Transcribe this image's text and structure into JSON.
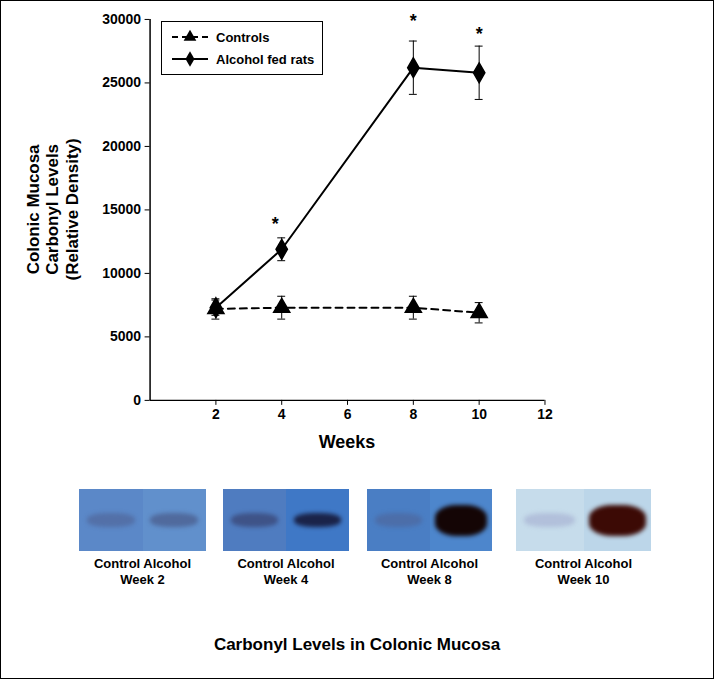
{
  "chart_data": {
    "type": "line",
    "x_label": "Weeks",
    "y_label": "Colonic Mucosa\nCarbonyl Levels\n(Relative Density)",
    "x": [
      2,
      4,
      8,
      10
    ],
    "series": [
      {
        "name": "Controls",
        "color": "#000000",
        "marker": "triangle",
        "line_style": "dashed",
        "values": [
          7200,
          7300,
          7300,
          6900
        ],
        "errors": [
          800,
          900,
          900,
          800
        ]
      },
      {
        "name": "Alcohol fed rats",
        "color": "#000000",
        "marker": "diamond",
        "line_style": "solid",
        "values": [
          7300,
          11900,
          26200,
          25800
        ],
        "errors": [
          600,
          900,
          2100,
          2100
        ]
      }
    ],
    "annotations": [
      {
        "text": "*",
        "x": 3.8,
        "y": 14000
      },
      {
        "text": "*",
        "x": 8,
        "y": 30000
      },
      {
        "text": "*",
        "x": 10,
        "y": 29000
      }
    ],
    "xlim": [
      0,
      12
    ],
    "xticks": [
      2,
      4,
      6,
      8,
      10,
      12
    ],
    "ylim": [
      0,
      30000
    ],
    "yticks": [
      0,
      5000,
      10000,
      15000,
      20000,
      25000,
      30000
    ],
    "legend": "upper left",
    "grid": false
  },
  "panels": [
    {
      "labels": [
        "Control",
        "Alcohol"
      ],
      "week": "Week 2"
    },
    {
      "labels": [
        "Control",
        "Alcohol"
      ],
      "week": "Week 4"
    },
    {
      "labels": [
        "Control",
        "Alcohol"
      ],
      "week": "Week 8"
    },
    {
      "labels": [
        "Control",
        "Alcohol"
      ],
      "week": "Week 10"
    }
  ],
  "caption": "Carbonyl Levels in Colonic Mucosa"
}
